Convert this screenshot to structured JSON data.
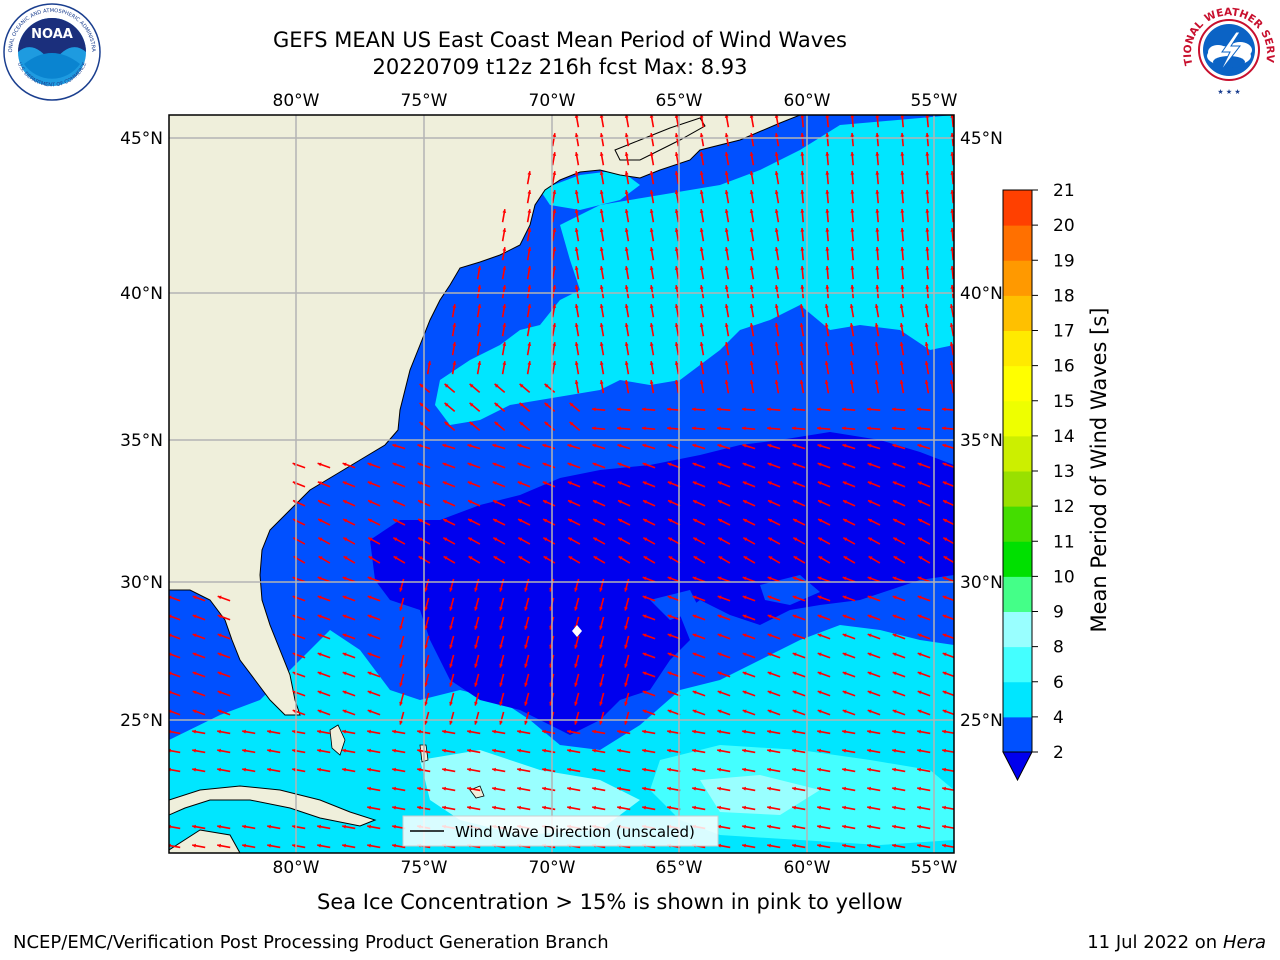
{
  "title_line1": "GEFS MEAN US East Coast Mean Period of Wind Waves",
  "title_line2": "20220709 t12z 216h fcst   Max: 8.93",
  "map": {
    "lon_labels": [
      "80°W",
      "75°W",
      "70°W",
      "65°W",
      "60°W",
      "55°W"
    ],
    "lat_labels": [
      "45°N",
      "40°N",
      "35°N",
      "30°N",
      "25°N"
    ],
    "lon_range": [
      -85,
      -54.3
    ],
    "lat_range": [
      20.5,
      46
    ],
    "land_color": "#efefdb",
    "legend_label": "Wind Wave Direction (unscaled)",
    "arrow_color": "#ff0000",
    "grid": true
  },
  "colorbar": {
    "label": "Mean Period of Wind Waves [s]",
    "ticks": [
      "2",
      "4",
      "6",
      "8",
      "9",
      "10",
      "11",
      "12",
      "13",
      "14",
      "15",
      "16",
      "17",
      "18",
      "19",
      "20",
      "21"
    ],
    "colors": [
      "#0050ff",
      "#00e6ff",
      "#44ffff",
      "#99ffff",
      "#44ff88",
      "#00e000",
      "#44dd00",
      "#99e000",
      "#ccef00",
      "#eeff00",
      "#ffff00",
      "#ffea00",
      "#ffc000",
      "#ff9900",
      "#ff7000",
      "#ff4000",
      "#ff0000"
    ],
    "under_color": "#0000ee"
  },
  "ice_note": "Sea Ice Concentration > 15% is shown in pink to yellow",
  "footer_left": "NCEP/EMC/Verification Post Processing Product Generation Branch",
  "footer_right_prefix": "11 Jul 2022 on ",
  "footer_right_host": "Hera",
  "logos": {
    "noaa_text": "NOAA",
    "noaa_ring_top": "NATIONAL OCEANIC AND ATMOSPHERIC ADMINISTRATION",
    "noaa_ring_bottom": "U.S. DEPARTMENT OF COMMERCE",
    "nws_ring": "NATIONAL WEATHER SERVICE"
  }
}
